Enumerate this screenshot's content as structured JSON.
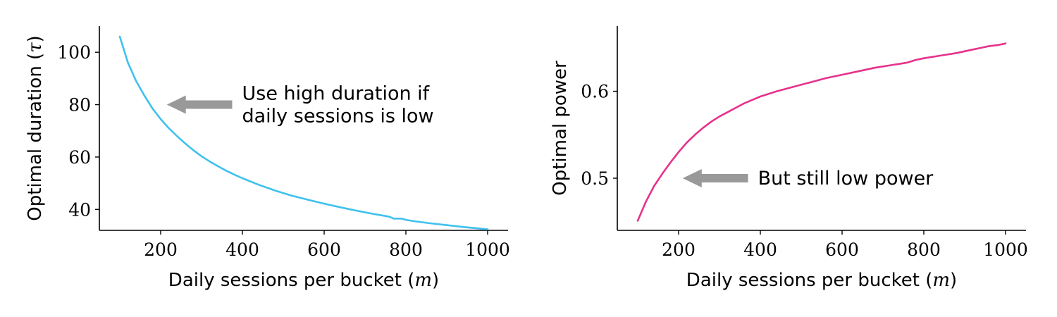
{
  "chart_data": [
    {
      "type": "line",
      "xlabel": "Daily sessions per bucket (",
      "xlabel_math": "m",
      "xlabel_suffix": ")",
      "ylabel": "Optimal duration (",
      "ylabel_math": "τ",
      "ylabel_suffix": ")",
      "xlim": [
        50,
        1050
      ],
      "ylim": [
        32,
        110
      ],
      "xticks": [
        200,
        400,
        600,
        800,
        1000
      ],
      "yticks": [
        40,
        60,
        80,
        100
      ],
      "grid": false,
      "series": [
        {
          "color": "#3fc1ee",
          "x": [
            100,
            120,
            140,
            160,
            180,
            200,
            220,
            240,
            260,
            280,
            300,
            320,
            340,
            360,
            380,
            400,
            440,
            480,
            520,
            560,
            600,
            640,
            680,
            720,
            760,
            770,
            790,
            800,
            820,
            860,
            900,
            940,
            980,
            1000
          ],
          "y": [
            106,
            96,
            89,
            83.5,
            78.5,
            74.5,
            71,
            68,
            65.2,
            62.6,
            60.3,
            58.3,
            56.5,
            54.8,
            53.3,
            51.9,
            49.4,
            47.2,
            45.3,
            43.7,
            42.2,
            40.8,
            39.5,
            38.3,
            37.2,
            36.5,
            36.5,
            36,
            35.5,
            34.7,
            34,
            33.3,
            32.7,
            32.4
          ]
        }
      ],
      "annotations": [
        {
          "lines": [
            "Use high duration if",
            "daily sessions is low"
          ],
          "arrow_to": [
            215,
            80
          ],
          "arrow_from": [
            375,
            80
          ],
          "arrow_color": "#999999"
        }
      ]
    },
    {
      "type": "line",
      "xlabel": "Daily sessions per bucket (",
      "xlabel_math": "m",
      "xlabel_suffix": ")",
      "ylabel": "Optimal power",
      "xlim": [
        50,
        1050
      ],
      "ylim": [
        0.44,
        0.675
      ],
      "xticks": [
        200,
        400,
        600,
        800,
        1000
      ],
      "yticks": [
        0.5,
        0.6
      ],
      "grid": false,
      "series": [
        {
          "color": "#e6328c",
          "x": [
            100,
            120,
            140,
            160,
            180,
            200,
            220,
            240,
            260,
            280,
            300,
            320,
            340,
            360,
            380,
            400,
            440,
            480,
            520,
            560,
            600,
            640,
            680,
            720,
            760,
            780,
            800,
            840,
            880,
            920,
            940,
            960,
            980,
            1000
          ],
          "y": [
            0.451,
            0.473,
            0.491,
            0.505,
            0.518,
            0.53,
            0.541,
            0.55,
            0.558,
            0.565,
            0.571,
            0.576,
            0.581,
            0.586,
            0.59,
            0.594,
            0.6,
            0.605,
            0.61,
            0.615,
            0.619,
            0.623,
            0.627,
            0.63,
            0.633,
            0.636,
            0.638,
            0.641,
            0.644,
            0.648,
            0.65,
            0.652,
            0.653,
            0.655
          ]
        }
      ],
      "annotations": [
        {
          "lines": [
            "But still low power"
          ],
          "arrow_to": [
            210,
            0.5
          ],
          "arrow_from": [
            370,
            0.5
          ],
          "arrow_color": "#999999"
        }
      ]
    }
  ]
}
